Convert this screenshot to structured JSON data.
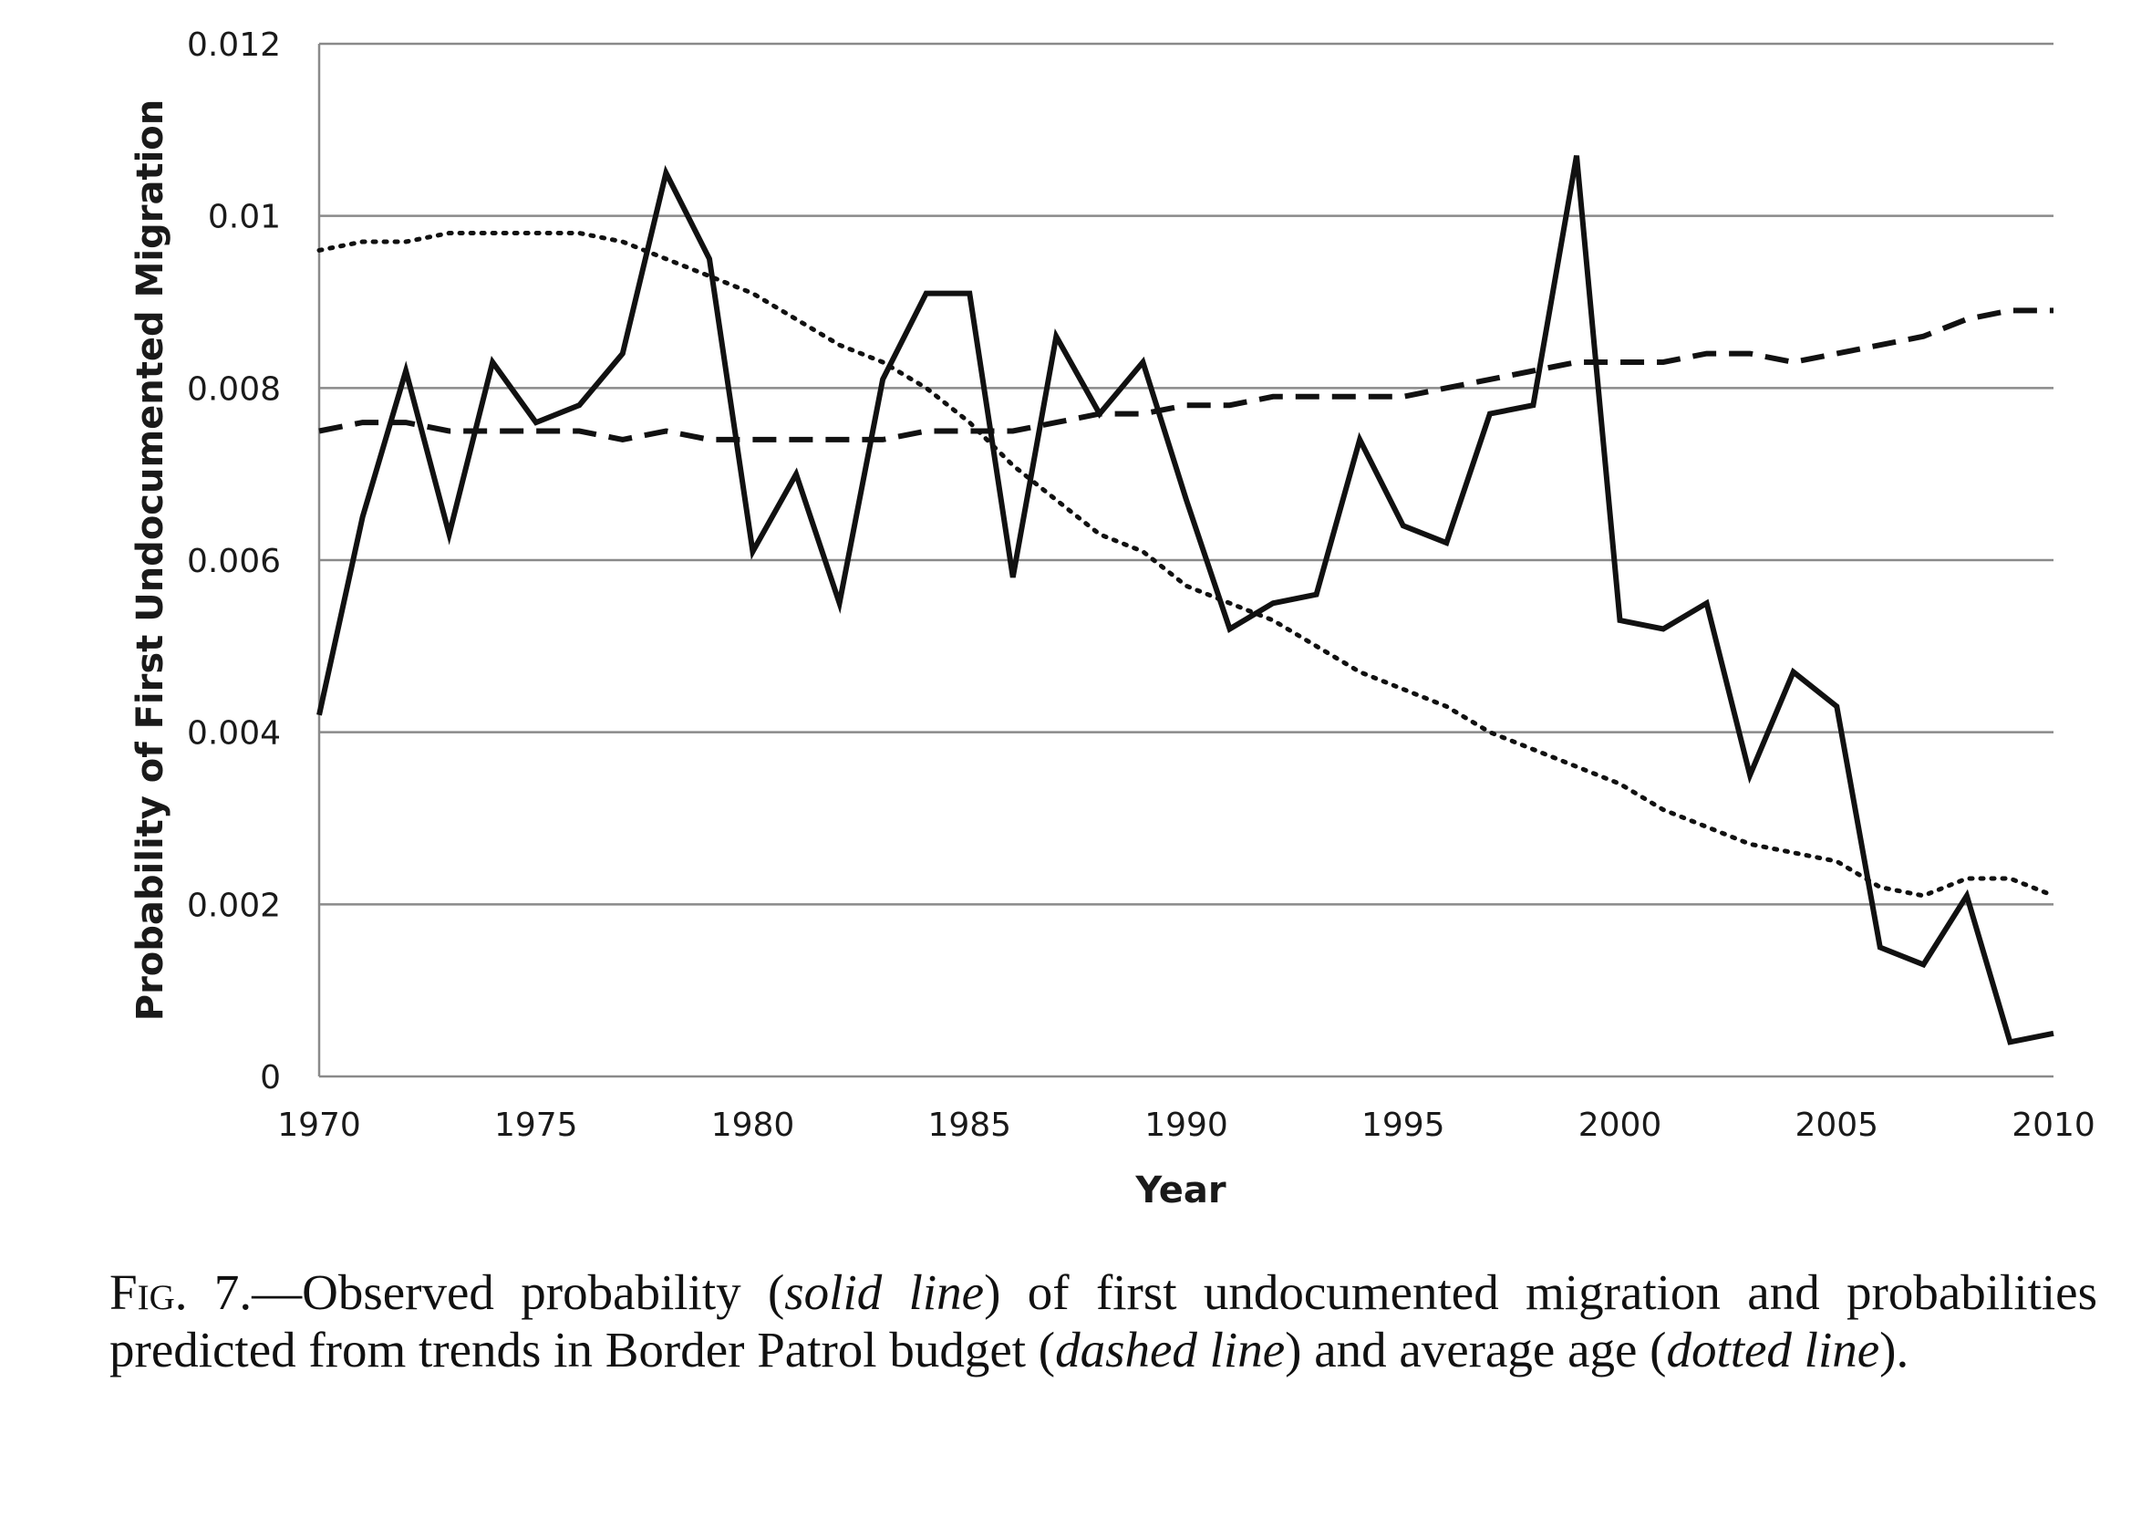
{
  "chart_data": {
    "type": "line",
    "xlabel": "Year",
    "ylabel": "Probability of First Undocumented Migration",
    "xlim": [
      1970,
      2010
    ],
    "ylim": [
      0,
      0.012
    ],
    "xticks": [
      "1970",
      "1975",
      "1980",
      "1985",
      "1990",
      "1995",
      "2000",
      "2005",
      "2010"
    ],
    "yticks": [
      "0",
      "0.002",
      "0.004",
      "0.006",
      "0.008",
      "0.01",
      "0.012"
    ],
    "grid": "horizontal",
    "x": [
      1970,
      1971,
      1972,
      1973,
      1974,
      1975,
      1976,
      1977,
      1978,
      1979,
      1980,
      1981,
      1982,
      1983,
      1984,
      1985,
      1986,
      1987,
      1988,
      1989,
      1990,
      1991,
      1992,
      1993,
      1994,
      1995,
      1996,
      1997,
      1998,
      1999,
      2000,
      2001,
      2002,
      2003,
      2004,
      2005,
      2006,
      2007,
      2008,
      2009,
      2010
    ],
    "series": [
      {
        "style": "solid",
        "values": [
          0.0042,
          0.0065,
          0.0082,
          0.0063,
          0.0083,
          0.0076,
          0.0078,
          0.0084,
          0.0105,
          0.0095,
          0.0061,
          0.007,
          0.0055,
          0.0081,
          0.0091,
          0.0091,
          0.0058,
          0.0086,
          0.0077,
          0.0083,
          0.0067,
          0.0052,
          0.0055,
          0.0056,
          0.0074,
          0.0064,
          0.0062,
          0.0077,
          0.0078,
          0.0107,
          0.0053,
          0.0052,
          0.0055,
          0.0035,
          0.0047,
          0.0043,
          0.0015,
          0.0013,
          0.0021,
          0.0004,
          0.0005
        ]
      },
      {
        "style": "dashed",
        "values": [
          0.0075,
          0.0076,
          0.0076,
          0.0075,
          0.0075,
          0.0075,
          0.0075,
          0.0074,
          0.0075,
          0.0074,
          0.0074,
          0.0074,
          0.0074,
          0.0074,
          0.0075,
          0.0075,
          0.0075,
          0.0076,
          0.0077,
          0.0077,
          0.0078,
          0.0078,
          0.0079,
          0.0079,
          0.0079,
          0.0079,
          0.008,
          0.0081,
          0.0082,
          0.0083,
          0.0083,
          0.0083,
          0.0084,
          0.0084,
          0.0083,
          0.0084,
          0.0085,
          0.0086,
          0.0088,
          0.0089,
          0.0089
        ]
      },
      {
        "style": "dotted",
        "values": [
          0.0096,
          0.0097,
          0.0097,
          0.0098,
          0.0098,
          0.0098,
          0.0098,
          0.0097,
          0.0095,
          0.0093,
          0.0091,
          0.0088,
          0.0085,
          0.0083,
          0.008,
          0.0076,
          0.0071,
          0.0067,
          0.0063,
          0.0061,
          0.0057,
          0.0055,
          0.0053,
          0.005,
          0.0047,
          0.0045,
          0.0043,
          0.004,
          0.0038,
          0.0036,
          0.0034,
          0.0031,
          0.0029,
          0.0027,
          0.0026,
          0.0025,
          0.0022,
          0.0021,
          0.0023,
          0.0023,
          0.0021
        ]
      }
    ]
  },
  "caption": {
    "fig_label": "Fig",
    "fig_number": ". 7.",
    "text_1": "—Observed probability (",
    "solid_label": "solid line",
    "text_2": ") of first undocumented migration and probabilities predicted from trends in Border Patrol budget (",
    "dashed_label": "dashed line",
    "text_3": ") and average age (",
    "dotted_label": "dotted line",
    "text_4": ")."
  }
}
